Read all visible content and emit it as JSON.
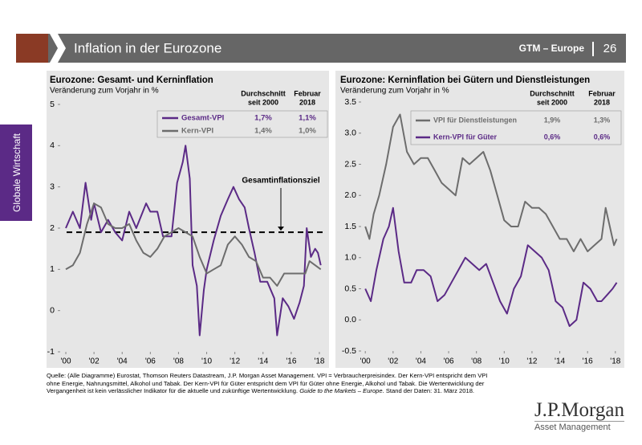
{
  "header": {
    "title": "Inflation in der Eurozone",
    "brand": "GTM – Europe",
    "page": "26"
  },
  "sidebar": "Globale Wirtschaft",
  "footnote": {
    "lines": [
      "Quelle: (Alle Diagramme) Eurostat, Thomson Reuters Datastream, J.P. Morgan Asset Management. VPI = Verbraucherpreisindex. Der Kern-VPI entspricht dem VPI",
      "ohne Energie, Nahrungsmittel, Alkohol und Tabak. Der Kern-VPI für Güter entspricht dem VPI für Güter ohne Energie, Alkohol und Tabak. Die Wertentwicklung der",
      "Vergangenheit ist kein verlässlicher Indikator für die aktuelle und zukünftige Wertentwicklung."
    ],
    "italic": "Guide to the Markets – Europe",
    "end": ". Stand der Daten: 31. März 2018."
  },
  "logo": {
    "name": "J.P.Morgan",
    "sub": "Asset Management"
  },
  "chart_data": [
    {
      "type": "line",
      "title": "Eurozone: Gesamt- und Kerninflation",
      "subtitle": "Veränderung zum Vorjahr in %",
      "legend_headers": [
        [
          "Durchschnitt",
          "seit 2000"
        ],
        [
          "Februar",
          "2018"
        ]
      ],
      "xlim": [
        1999.6,
        2018.4
      ],
      "xticks": [
        {
          "value": 2000,
          "label": "'00"
        },
        {
          "value": 2002,
          "label": "'02"
        },
        {
          "value": 2004,
          "label": "'04"
        },
        {
          "value": 2006,
          "label": "'06"
        },
        {
          "value": 2008,
          "label": "'08"
        },
        {
          "value": 2010,
          "label": "'10"
        },
        {
          "value": 2012,
          "label": "'12"
        },
        {
          "value": 2014,
          "label": "'14"
        },
        {
          "value": 2016,
          "label": "'16"
        },
        {
          "value": 2018,
          "label": "'18"
        }
      ],
      "ylim": [
        -1,
        5
      ],
      "yticks": [
        -1,
        0,
        1,
        2,
        3,
        4,
        5
      ],
      "reference_line": {
        "value": 1.9,
        "label": "Gesamtinflationsziel"
      },
      "series": [
        {
          "name": "Gesamt-VPI",
          "color": "#5b2a86",
          "avg_label": "1,7%",
          "feb_label": "1,1%",
          "x": [
            2000.0,
            2000.5,
            2001.0,
            2001.4,
            2001.8,
            2002.0,
            2002.5,
            2003.0,
            2003.5,
            2004.0,
            2004.5,
            2005.0,
            2005.7,
            2006.0,
            2006.5,
            2006.9,
            2007.5,
            2007.9,
            2008.3,
            2008.5,
            2008.8,
            2009.0,
            2009.3,
            2009.5,
            2009.8,
            2010.0,
            2010.5,
            2011.0,
            2011.5,
            2011.9,
            2012.3,
            2012.7,
            2013.0,
            2013.4,
            2013.8,
            2014.3,
            2014.8,
            2015.0,
            2015.4,
            2015.8,
            2016.2,
            2016.6,
            2016.9,
            2017.1,
            2017.4,
            2017.7,
            2017.9,
            2018.1
          ],
          "values": [
            2.0,
            2.4,
            2.0,
            3.1,
            2.2,
            2.6,
            1.9,
            2.2,
            1.9,
            1.7,
            2.4,
            2.0,
            2.6,
            2.4,
            2.4,
            1.8,
            1.8,
            3.1,
            3.6,
            4.0,
            3.2,
            1.1,
            0.6,
            -0.6,
            0.5,
            1.0,
            1.7,
            2.3,
            2.7,
            3.0,
            2.7,
            2.5,
            2.0,
            1.4,
            0.7,
            0.7,
            0.3,
            -0.6,
            0.3,
            0.1,
            -0.2,
            0.2,
            0.6,
            2.0,
            1.3,
            1.5,
            1.4,
            1.1
          ]
        },
        {
          "name": "Kern-VPI",
          "color": "#6d6d6d",
          "avg_label": "1,4%",
          "feb_label": "1,0%",
          "x": [
            2000.0,
            2000.5,
            2001.0,
            2001.5,
            2002.0,
            2002.5,
            2003.0,
            2003.5,
            2004.0,
            2004.5,
            2005.0,
            2005.5,
            2006.0,
            2006.5,
            2007.0,
            2007.5,
            2008.0,
            2008.5,
            2009.0,
            2009.5,
            2010.0,
            2010.5,
            2011.0,
            2011.5,
            2012.0,
            2012.5,
            2013.0,
            2013.5,
            2014.0,
            2014.5,
            2015.0,
            2015.5,
            2016.0,
            2016.5,
            2017.0,
            2017.3,
            2017.7,
            2018.1
          ],
          "values": [
            1.0,
            1.1,
            1.4,
            2.1,
            2.6,
            2.5,
            2.1,
            2.0,
            2.0,
            2.1,
            1.7,
            1.4,
            1.3,
            1.5,
            1.8,
            1.9,
            2.0,
            1.9,
            1.8,
            1.3,
            0.9,
            1.0,
            1.1,
            1.6,
            1.8,
            1.6,
            1.3,
            1.2,
            0.8,
            0.8,
            0.6,
            0.9,
            0.9,
            0.9,
            0.9,
            1.2,
            1.1,
            1.0
          ]
        }
      ]
    },
    {
      "type": "line",
      "title": "Eurozone: Kerninflation bei Gütern und Dienstleistungen",
      "subtitle": "Veränderung zum Vorjahr in %",
      "legend_headers": [
        [
          "Durchschnitt",
          "seit 2000"
        ],
        [
          "Februar",
          "2018"
        ]
      ],
      "xlim": [
        1999.7,
        2018.3
      ],
      "xticks": [
        {
          "value": 2000,
          "label": "'00"
        },
        {
          "value": 2002,
          "label": "'02"
        },
        {
          "value": 2004,
          "label": "'04"
        },
        {
          "value": 2006,
          "label": "'06"
        },
        {
          "value": 2008,
          "label": "'08"
        },
        {
          "value": 2010,
          "label": "'10"
        },
        {
          "value": 2012,
          "label": "'12"
        },
        {
          "value": 2014,
          "label": "'14"
        },
        {
          "value": 2016,
          "label": "'16"
        },
        {
          "value": 2018,
          "label": "'18"
        }
      ],
      "ylim": [
        -0.5,
        3.5
      ],
      "yticks": [
        -0.5,
        {
          "value": 0,
          "label": "0.0"
        },
        0.5,
        {
          "value": 1,
          "label": "1.0"
        },
        1.5,
        {
          "value": 2,
          "label": "2.0"
        },
        2.5,
        {
          "value": 3,
          "label": "3.0"
        },
        3.5
      ],
      "series": [
        {
          "name": "VPI für Dienstleistungen",
          "color": "#6d6d6d",
          "avg_label": "1,9%",
          "feb_label": "1,3%",
          "x": [
            2000.0,
            2000.3,
            2000.6,
            2001.0,
            2001.5,
            2002.0,
            2002.5,
            2003.0,
            2003.5,
            2004.0,
            2004.5,
            2005.0,
            2005.5,
            2006.0,
            2006.5,
            2007.0,
            2007.5,
            2008.0,
            2008.5,
            2009.0,
            2009.5,
            2010.0,
            2010.5,
            2011.0,
            2011.5,
            2012.0,
            2012.5,
            2013.0,
            2013.5,
            2014.0,
            2014.5,
            2015.0,
            2015.5,
            2016.0,
            2016.5,
            2017.0,
            2017.3,
            2017.6,
            2017.9,
            2018.1
          ],
          "values": [
            1.5,
            1.3,
            1.7,
            2.0,
            2.5,
            3.1,
            3.3,
            2.7,
            2.5,
            2.6,
            2.6,
            2.4,
            2.2,
            2.1,
            2.0,
            2.6,
            2.5,
            2.6,
            2.7,
            2.4,
            2.0,
            1.6,
            1.5,
            1.5,
            1.9,
            1.8,
            1.8,
            1.7,
            1.5,
            1.3,
            1.3,
            1.1,
            1.3,
            1.1,
            1.2,
            1.3,
            1.8,
            1.5,
            1.2,
            1.3
          ]
        },
        {
          "name": "Kern-VPI für Güter",
          "color": "#5b2a86",
          "avg_label": "0,6%",
          "feb_label": "0,6%",
          "x": [
            2000.0,
            2000.4,
            2000.8,
            2001.3,
            2001.7,
            2002.0,
            2002.4,
            2002.8,
            2003.3,
            2003.7,
            2004.2,
            2004.7,
            2005.2,
            2005.7,
            2006.2,
            2006.7,
            2007.2,
            2007.7,
            2008.2,
            2008.7,
            2009.2,
            2009.7,
            2010.2,
            2010.7,
            2011.2,
            2011.7,
            2012.2,
            2012.7,
            2013.2,
            2013.7,
            2014.2,
            2014.7,
            2015.2,
            2015.7,
            2016.2,
            2016.7,
            2017.0,
            2017.4,
            2017.8,
            2018.1
          ],
          "values": [
            0.5,
            0.3,
            0.8,
            1.3,
            1.5,
            1.8,
            1.1,
            0.6,
            0.6,
            0.8,
            0.8,
            0.7,
            0.3,
            0.4,
            0.6,
            0.8,
            1.0,
            0.9,
            0.8,
            0.9,
            0.6,
            0.3,
            0.1,
            0.5,
            0.7,
            1.2,
            1.1,
            1.0,
            0.8,
            0.3,
            0.2,
            -0.1,
            0.0,
            0.6,
            0.5,
            0.3,
            0.3,
            0.4,
            0.5,
            0.6
          ]
        }
      ]
    }
  ]
}
